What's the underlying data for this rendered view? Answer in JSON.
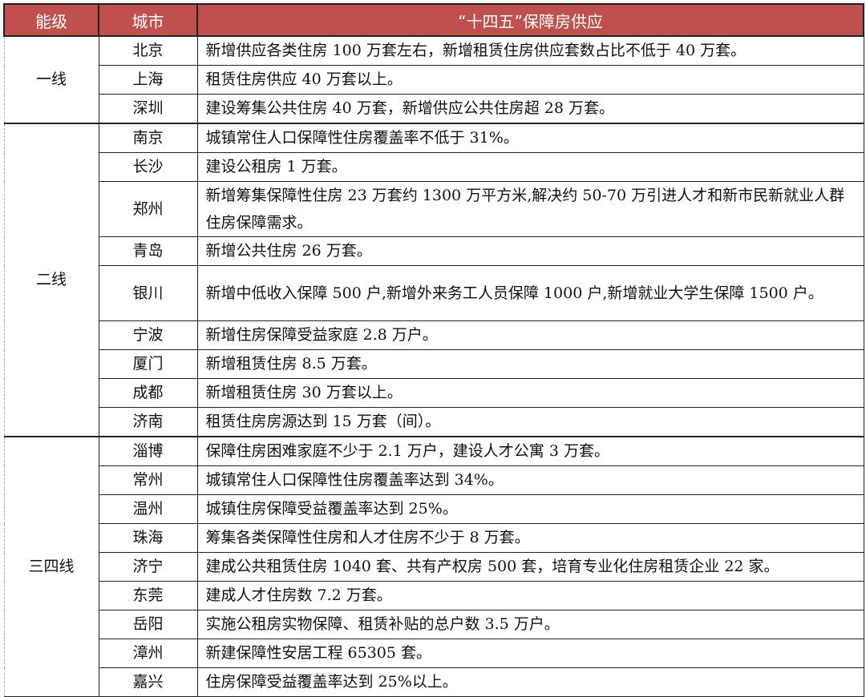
{
  "colors": {
    "header_bg": "#c0504d",
    "header_text": "#ffffff"
  },
  "headers": [
    "能级",
    "城市",
    "“十四五”保障房供应"
  ],
  "groups": [
    {
      "tier": "一线",
      "rows": [
        {
          "city": "北京",
          "text": "新增供应各类住房 100 万套左右，新增租赁住房供应套数占比不低于 40 万套。"
        },
        {
          "city": "上海",
          "text": "租赁住房供应 40 万套以上。"
        },
        {
          "city": "深圳",
          "text": "建设筹集公共住房 40 万套，新增供应公共住房超 28 万套。"
        }
      ]
    },
    {
      "tier": "二线",
      "rows": [
        {
          "city": "南京",
          "text": "城镇常住人口保障性住房覆盖率不低于 31%。"
        },
        {
          "city": "长沙",
          "text": "建设公租房 1 万套。"
        },
        {
          "city": "郑州",
          "text": "新增筹集保障性住房 23 万套约 1300 万平方米,解决约 50-70 万引进人才和新市民新就业人群住房保障需求。",
          "tall": true
        },
        {
          "city": "青岛",
          "text": "新增公共住房 26 万套。"
        },
        {
          "city": "银川",
          "text": "新增中低收入保障 500 户,新增外来务工人员保障 1000 户,新增就业大学生保障 1500 户。",
          "tall": true
        },
        {
          "city": "宁波",
          "text": "新增住房保障受益家庭 2.8 万户。"
        },
        {
          "city": "厦门",
          "text": "新增租赁住房 8.5 万套。"
        },
        {
          "city": "成都",
          "text": "新增租赁住房 30 万套以上。"
        },
        {
          "city": "济南",
          "text": "租赁住房房源达到 15 万套（间）。"
        }
      ]
    },
    {
      "tier": "三四线",
      "rows": [
        {
          "city": "淄博",
          "text": "保障住房困难家庭不少于 2.1 万户，建设人才公寓 3 万套。"
        },
        {
          "city": "常州",
          "text": "城镇常住人口保障性住房覆盖率达到 34%。"
        },
        {
          "city": "温州",
          "text": "城镇住房保障受益覆盖率达到 25%。"
        },
        {
          "city": "珠海",
          "text": "筹集各类保障性住房和人才住房不少于 8 万套。"
        },
        {
          "city": "济宁",
          "text": "建成公共租赁住房 1040 套、共有产权房 500 套，培育专业化住房租赁企业 22 家。"
        },
        {
          "city": "东莞",
          "text": "建成人才住房数 7.2 万套。"
        },
        {
          "city": "岳阳",
          "text": "实施公租房实物保障、租赁补贴的总户数 3.5 万户。"
        },
        {
          "city": "漳州",
          "text": "新建保障性安居工程 65305 套。"
        },
        {
          "city": "嘉兴",
          "text": "住房保障受益覆盖率达到 25%以上。"
        }
      ]
    }
  ]
}
